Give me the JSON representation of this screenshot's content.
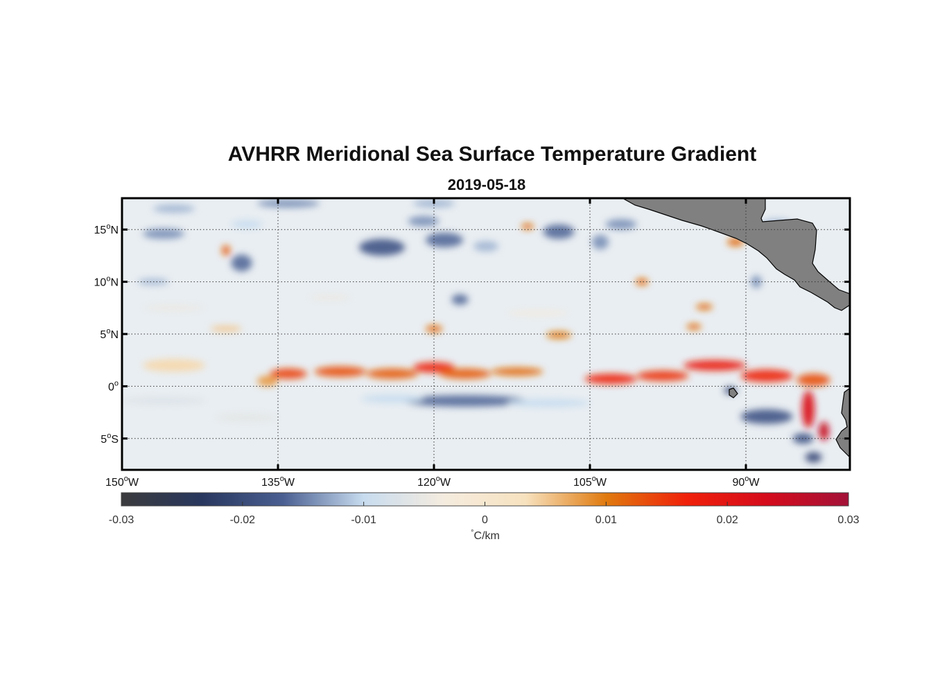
{
  "figure": {
    "title": "AVHRR Meridional Sea Surface Temperature Gradient",
    "subtitle": "2019-05-18"
  },
  "map": {
    "lon_range": [
      -150,
      -80
    ],
    "lat_range": [
      -8,
      18
    ],
    "lat_ticks": [
      {
        "value": 15,
        "num": "15",
        "hemi": "N"
      },
      {
        "value": 10,
        "num": "10",
        "hemi": "N"
      },
      {
        "value": 5,
        "num": "5",
        "hemi": "N"
      },
      {
        "value": 0,
        "num": "0",
        "hemi": ""
      },
      {
        "value": -5,
        "num": "5",
        "hemi": "S"
      }
    ],
    "lon_ticks": [
      {
        "value": -150,
        "num": "150",
        "hemi": "W"
      },
      {
        "value": -135,
        "num": "135",
        "hemi": "W"
      },
      {
        "value": -120,
        "num": "120",
        "hemi": "W"
      },
      {
        "value": -105,
        "num": "105",
        "hemi": "W"
      },
      {
        "value": -90,
        "num": "90",
        "hemi": "W"
      }
    ],
    "grid": "dotted",
    "land_color": "#808080",
    "ocean_background": "#e9eef2"
  },
  "features": [
    {
      "lon": -134,
      "lat": 1.2,
      "rx": 1.8,
      "ry": 0.5,
      "value": 0.014
    },
    {
      "lon": -129,
      "lat": 1.4,
      "rx": 2.5,
      "ry": 0.5,
      "value": 0.013
    },
    {
      "lon": -124,
      "lat": 1.2,
      "rx": 2.5,
      "ry": 0.5,
      "value": 0.012
    },
    {
      "lon": -120,
      "lat": 1.8,
      "rx": 2.0,
      "ry": 0.5,
      "value": 0.016
    },
    {
      "lon": -117,
      "lat": 1.2,
      "rx": 2.5,
      "ry": 0.5,
      "value": 0.012
    },
    {
      "lon": -112,
      "lat": 1.4,
      "rx": 2.5,
      "ry": 0.4,
      "value": 0.011
    },
    {
      "lon": -103,
      "lat": 0.7,
      "rx": 2.5,
      "ry": 0.5,
      "value": 0.016
    },
    {
      "lon": -98,
      "lat": 1.0,
      "rx": 2.5,
      "ry": 0.5,
      "value": 0.015
    },
    {
      "lon": -93,
      "lat": 2.0,
      "rx": 3.0,
      "ry": 0.5,
      "value": 0.018
    },
    {
      "lon": -88,
      "lat": 1.0,
      "rx": 2.5,
      "ry": 0.6,
      "value": 0.016
    },
    {
      "lon": -83.5,
      "lat": 0.6,
      "rx": 1.6,
      "ry": 0.6,
      "value": 0.013
    },
    {
      "lon": -84,
      "lat": -2.2,
      "rx": 0.6,
      "ry": 1.8,
      "value": 0.022
    },
    {
      "lon": -82.5,
      "lat": -4.3,
      "rx": 0.5,
      "ry": 0.9,
      "value": 0.025
    },
    {
      "lon": -120,
      "lat": 5.5,
      "rx": 0.8,
      "ry": 0.35,
      "value": 0.011
    },
    {
      "lon": -108,
      "lat": 4.9,
      "rx": 1.2,
      "ry": 0.35,
      "value": 0.01
    },
    {
      "lon": -95,
      "lat": 5.7,
      "rx": 0.7,
      "ry": 0.3,
      "value": 0.011
    },
    {
      "lon": -94,
      "lat": 7.6,
      "rx": 0.8,
      "ry": 0.3,
      "value": 0.011
    },
    {
      "lon": -100,
      "lat": 10.0,
      "rx": 0.6,
      "ry": 0.35,
      "value": 0.011
    },
    {
      "lon": -91,
      "lat": 13.8,
      "rx": 0.8,
      "ry": 0.4,
      "value": 0.011
    },
    {
      "lon": -111,
      "lat": 15.3,
      "rx": 0.6,
      "ry": 0.3,
      "value": 0.011
    },
    {
      "lon": -140,
      "lat": 13.0,
      "rx": 0.4,
      "ry": 0.5,
      "value": 0.012
    },
    {
      "lon": -140,
      "lat": 5.5,
      "rx": 1.5,
      "ry": 0.3,
      "value": 0.005
    },
    {
      "lon": -145,
      "lat": 2.0,
      "rx": 3.0,
      "ry": 0.6,
      "value": 0.004
    },
    {
      "lon": -136,
      "lat": 0.5,
      "rx": 1.0,
      "ry": 0.5,
      "value": 0.008
    },
    {
      "lon": -117,
      "lat": -1.4,
      "rx": 6.0,
      "ry": 0.55,
      "value": -0.016
    },
    {
      "lon": -109,
      "lat": -1.6,
      "rx": 4.0,
      "ry": 0.4,
      "value": -0.01
    },
    {
      "lon": -124,
      "lat": -1.2,
      "rx": 3.0,
      "ry": 0.4,
      "value": -0.01
    },
    {
      "lon": -88,
      "lat": -2.9,
      "rx": 2.5,
      "ry": 0.7,
      "value": -0.018
    },
    {
      "lon": -84.5,
      "lat": -5.0,
      "rx": 1.0,
      "ry": 0.5,
      "value": -0.018
    },
    {
      "lon": -83.5,
      "lat": -6.8,
      "rx": 0.8,
      "ry": 0.5,
      "value": -0.02
    },
    {
      "lon": -91.5,
      "lat": -0.4,
      "rx": 0.6,
      "ry": 0.35,
      "value": -0.02
    },
    {
      "lon": -146,
      "lat": -1.4,
      "rx": 4.0,
      "ry": 0.4,
      "value": -0.007
    },
    {
      "lon": -138,
      "lat": -3.0,
      "rx": 3.0,
      "ry": 0.4,
      "value": -0.006
    },
    {
      "lon": -125,
      "lat": 13.3,
      "rx": 2.2,
      "ry": 0.8,
      "value": -0.018
    },
    {
      "lon": -119,
      "lat": 14.0,
      "rx": 1.8,
      "ry": 0.7,
      "value": -0.016
    },
    {
      "lon": -121,
      "lat": 15.8,
      "rx": 1.5,
      "ry": 0.5,
      "value": -0.014
    },
    {
      "lon": -108,
      "lat": 14.8,
      "rx": 1.5,
      "ry": 0.7,
      "value": -0.016
    },
    {
      "lon": -115,
      "lat": 13.4,
      "rx": 1.2,
      "ry": 0.5,
      "value": -0.012
    },
    {
      "lon": -102,
      "lat": 15.5,
      "rx": 1.5,
      "ry": 0.5,
      "value": -0.014
    },
    {
      "lon": -104,
      "lat": 13.8,
      "rx": 0.8,
      "ry": 0.7,
      "value": -0.014
    },
    {
      "lon": -138.5,
      "lat": 11.8,
      "rx": 1.0,
      "ry": 0.8,
      "value": -0.016
    },
    {
      "lon": -146,
      "lat": 14.6,
      "rx": 2.0,
      "ry": 0.5,
      "value": -0.014
    },
    {
      "lon": -147,
      "lat": 10.0,
      "rx": 1.5,
      "ry": 0.3,
      "value": -0.012
    },
    {
      "lon": -134,
      "lat": 17.5,
      "rx": 3.0,
      "ry": 0.4,
      "value": -0.014
    },
    {
      "lon": -120,
      "lat": 17.5,
      "rx": 2.0,
      "ry": 0.4,
      "value": -0.012
    },
    {
      "lon": -145,
      "lat": 17.0,
      "rx": 2.0,
      "ry": 0.4,
      "value": -0.012
    },
    {
      "lon": -138,
      "lat": 15.5,
      "rx": 1.5,
      "ry": 0.4,
      "value": -0.01
    },
    {
      "lon": -117.5,
      "lat": 8.3,
      "rx": 0.8,
      "ry": 0.5,
      "value": -0.016
    },
    {
      "lon": -89,
      "lat": 10.0,
      "rx": 0.5,
      "ry": 0.6,
      "value": -0.014
    },
    {
      "lon": -87,
      "lat": 15.5,
      "rx": 1.5,
      "ry": 0.5,
      "value": -0.012
    },
    {
      "lon": -130,
      "lat": 8.5,
      "rx": 2.0,
      "ry": 0.3,
      "value": -0.005
    },
    {
      "lon": -110,
      "lat": 7.0,
      "rx": 3.0,
      "ry": 0.3,
      "value": -0.004
    },
    {
      "lon": -145,
      "lat": 7.5,
      "rx": 3.0,
      "ry": 0.3,
      "value": -0.005
    }
  ],
  "colorbar": {
    "range": [
      -0.03,
      0.03
    ],
    "ticks": [
      "-0.03",
      "-0.02",
      "-0.01",
      "0",
      "0.01",
      "0.02",
      "0.03"
    ],
    "tick_values": [
      -0.03,
      -0.02,
      -0.01,
      0,
      0.01,
      0.02,
      0.03
    ],
    "units_deg": "°",
    "units_rest": "C/km",
    "colors": [
      "#3b3b3d",
      "#28375e",
      "#4a5f91",
      "#c8dcef",
      "#f5ecdf",
      "#f7e2bf",
      "#e07a0e",
      "#f0200a",
      "#d40b1c",
      "#a31238"
    ]
  }
}
